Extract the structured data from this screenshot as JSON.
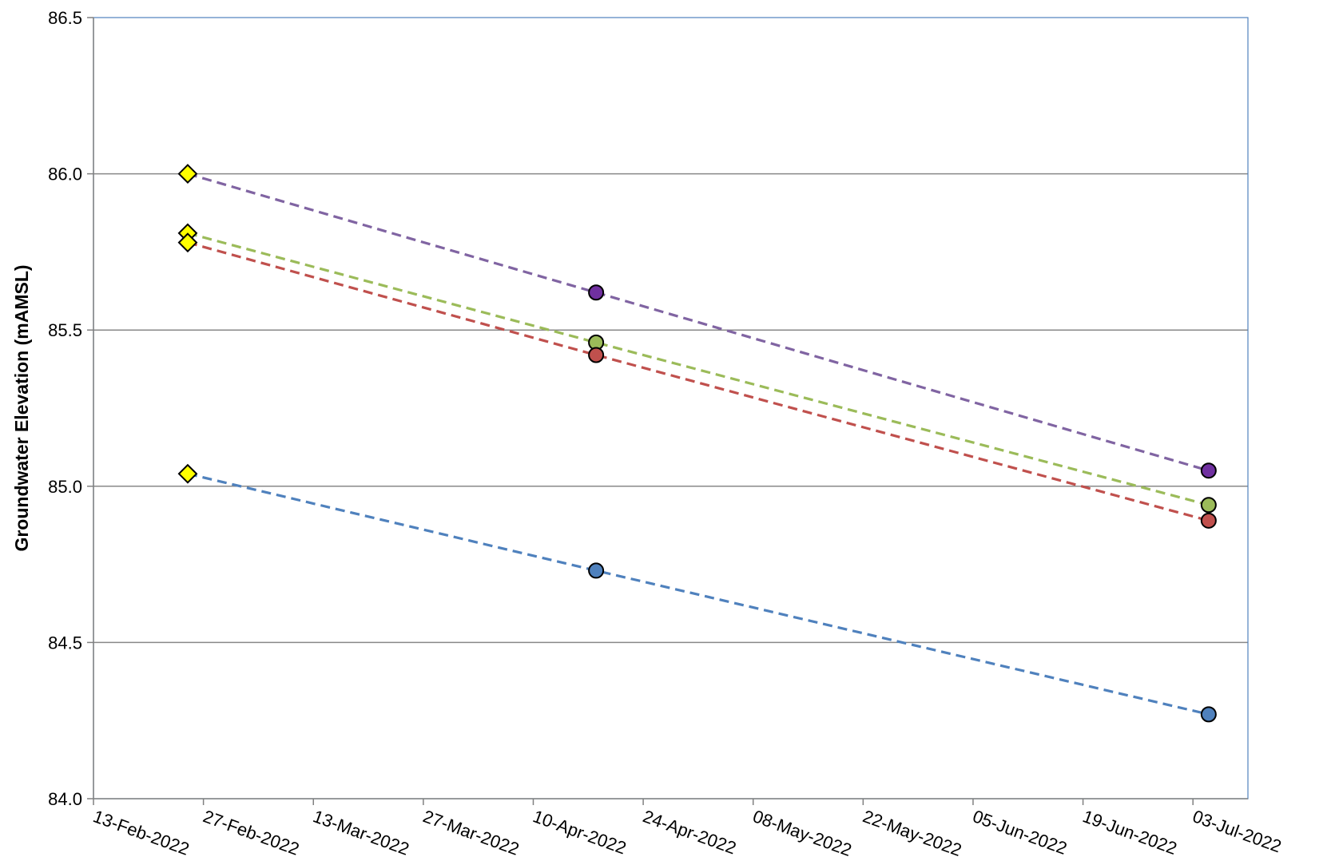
{
  "chart_data": {
    "type": "line",
    "title": "",
    "xlabel": "",
    "ylabel": "Groundwater Elevation (mAMSL)",
    "ylim": [
      84.0,
      86.5
    ],
    "yticks": [
      "84.0",
      "84.5",
      "85.0",
      "85.5",
      "86.0",
      "86.5"
    ],
    "xlim": [
      "2022-02-13",
      "2022-07-10"
    ],
    "xticks": [
      "13-Feb-2022",
      "27-Feb-2022",
      "13-Mar-2022",
      "27-Mar-2022",
      "10-Apr-2022",
      "24-Apr-2022",
      "08-May-2022",
      "22-May-2022",
      "05-Jun-2022",
      "19-Jun-2022",
      "03-Jul-2022"
    ],
    "grid": "horizontal",
    "legend": "none",
    "line_style": "dashed",
    "series": [
      {
        "color": "#8064A2",
        "marker_color": "#7030A0",
        "points": [
          {
            "x": "2022-02-25",
            "y": 86.0,
            "marker": "diamond"
          },
          {
            "x": "2022-04-18",
            "y": 85.62,
            "marker": "circle"
          },
          {
            "x": "2022-07-05",
            "y": 85.05,
            "marker": "circle"
          }
        ]
      },
      {
        "color": "#9BBB59",
        "marker_color": "#9BBB59",
        "points": [
          {
            "x": "2022-02-25",
            "y": 85.81,
            "marker": "diamond"
          },
          {
            "x": "2022-04-18",
            "y": 85.46,
            "marker": "circle"
          },
          {
            "x": "2022-07-05",
            "y": 84.94,
            "marker": "circle"
          }
        ]
      },
      {
        "color": "#C0504D",
        "marker_color": "#C0504D",
        "points": [
          {
            "x": "2022-02-25",
            "y": 85.78,
            "marker": "diamond"
          },
          {
            "x": "2022-04-18",
            "y": 85.42,
            "marker": "circle"
          },
          {
            "x": "2022-07-05",
            "y": 84.89,
            "marker": "circle"
          }
        ]
      },
      {
        "color": "#4F81BD",
        "marker_color": "#4F81BD",
        "points": [
          {
            "x": "2022-02-25",
            "y": 85.04,
            "marker": "diamond"
          },
          {
            "x": "2022-04-18",
            "y": 84.73,
            "marker": "circle"
          },
          {
            "x": "2022-07-05",
            "y": 84.27,
            "marker": "circle"
          }
        ]
      }
    ],
    "diamond_color": "#FFFF00"
  }
}
